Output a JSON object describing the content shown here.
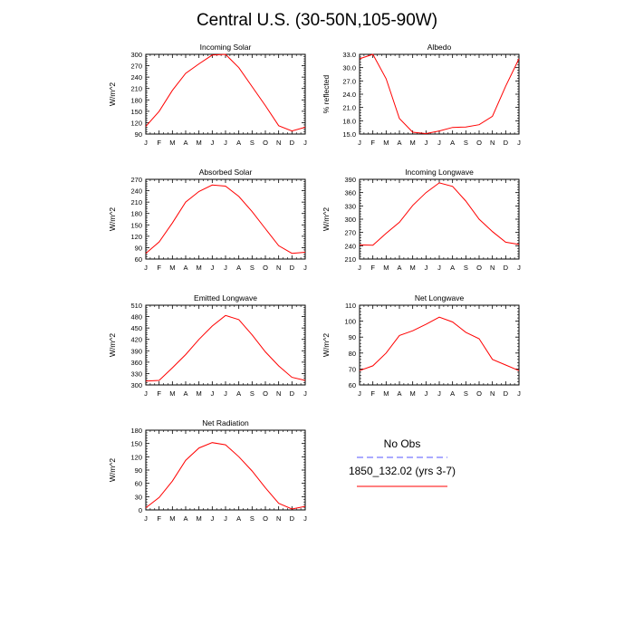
{
  "page": {
    "title": "Central U.S. (30-50N,105-90W)"
  },
  "legend": {
    "entries": [
      {
        "label": "No Obs",
        "color": "#5555ff",
        "style": "dashed"
      },
      {
        "label": "1850_132.02 (yrs 3-7)",
        "color": "#ff0000",
        "style": "solid"
      }
    ]
  },
  "colors": {
    "series": "#ff0000",
    "axis": "#000000"
  },
  "chart_data": [
    {
      "type": "line",
      "title": "Incoming Solar",
      "ylabel": "W/m^2",
      "xlabel": "",
      "x": [
        "J",
        "F",
        "M",
        "A",
        "M",
        "J",
        "J",
        "A",
        "S",
        "O",
        "N",
        "D",
        "J"
      ],
      "ylim": [
        90,
        300
      ],
      "yticks": [
        90,
        120,
        150,
        180,
        210,
        240,
        270,
        300
      ],
      "ytick_labels": [
        "90",
        "120",
        "150",
        "180",
        "210",
        "240",
        "270",
        "300"
      ],
      "series": [
        {
          "values": [
            110,
            150,
            205,
            250,
            275,
            298,
            300,
            265,
            215,
            165,
            112,
            98,
            108
          ]
        }
      ]
    },
    {
      "type": "line",
      "title": "Albedo",
      "ylabel": "% reflected",
      "xlabel": "",
      "x": [
        "J",
        "F",
        "M",
        "A",
        "M",
        "J",
        "J",
        "A",
        "S",
        "O",
        "N",
        "D",
        "J"
      ],
      "ylim": [
        15.0,
        33.0
      ],
      "yticks": [
        15,
        18,
        21,
        24,
        27,
        30,
        33
      ],
      "ytick_labels": [
        "15.0",
        "18.0",
        "21.0",
        "24.0",
        "27.0",
        "30.0",
        "33.0"
      ],
      "series": [
        {
          "values": [
            32.0,
            33.0,
            27.5,
            18.5,
            15.4,
            15.1,
            15.7,
            16.5,
            16.6,
            17.1,
            19.0,
            25.8,
            32.0
          ]
        }
      ]
    },
    {
      "type": "line",
      "title": "Absorbed Solar",
      "ylabel": "W/m^2",
      "xlabel": "",
      "x": [
        "J",
        "F",
        "M",
        "A",
        "M",
        "J",
        "J",
        "A",
        "S",
        "O",
        "N",
        "D",
        "J"
      ],
      "ylim": [
        60,
        270
      ],
      "yticks": [
        60,
        90,
        120,
        150,
        180,
        210,
        240,
        270
      ],
      "ytick_labels": [
        "60",
        "90",
        "120",
        "150",
        "180",
        "210",
        "240",
        "270"
      ],
      "series": [
        {
          "values": [
            75,
            105,
            155,
            210,
            238,
            255,
            252,
            225,
            185,
            140,
            95,
            75,
            78
          ]
        }
      ]
    },
    {
      "type": "line",
      "title": "Incoming Longwave",
      "ylabel": "W/m^2",
      "xlabel": "",
      "x": [
        "J",
        "F",
        "M",
        "A",
        "M",
        "J",
        "J",
        "A",
        "S",
        "O",
        "N",
        "D",
        "J"
      ],
      "ylim": [
        210,
        390
      ],
      "yticks": [
        210,
        240,
        270,
        300,
        330,
        360,
        390
      ],
      "ytick_labels": [
        "210",
        "240",
        "270",
        "300",
        "330",
        "360",
        "390"
      ],
      "series": [
        {
          "values": [
            242,
            241,
            268,
            293,
            331,
            360,
            382,
            374,
            341,
            300,
            272,
            248,
            243
          ]
        }
      ]
    },
    {
      "type": "line",
      "title": "Emitted Longwave",
      "ylabel": "W/m^2",
      "xlabel": "",
      "x": [
        "J",
        "F",
        "M",
        "A",
        "M",
        "J",
        "J",
        "A",
        "S",
        "O",
        "N",
        "D",
        "J"
      ],
      "ylim": [
        300,
        510
      ],
      "yticks": [
        300,
        330,
        360,
        390,
        420,
        450,
        480,
        510
      ],
      "ytick_labels": [
        "300",
        "330",
        "360",
        "390",
        "420",
        "450",
        "480",
        "510"
      ],
      "series": [
        {
          "values": [
            310,
            312,
            345,
            380,
            420,
            455,
            483,
            472,
            432,
            387,
            350,
            320,
            312
          ]
        }
      ]
    },
    {
      "type": "line",
      "title": "Net Longwave",
      "ylabel": "W/m^2",
      "xlabel": "",
      "x": [
        "J",
        "F",
        "M",
        "A",
        "M",
        "J",
        "J",
        "A",
        "S",
        "O",
        "N",
        "D",
        "J"
      ],
      "ylim": [
        60,
        110
      ],
      "yticks": [
        60,
        70,
        80,
        90,
        100,
        110
      ],
      "ytick_labels": [
        "60",
        "70",
        "80",
        "90",
        "100",
        "110"
      ],
      "series": [
        {
          "values": [
            69,
            72,
            80,
            91,
            94,
            98,
            102.5,
            99.5,
            93,
            89,
            76,
            72.5,
            69
          ]
        }
      ]
    },
    {
      "type": "line",
      "title": "Net Radiation",
      "ylabel": "W/m^2",
      "xlabel": "",
      "x": [
        "J",
        "F",
        "M",
        "A",
        "M",
        "J",
        "J",
        "A",
        "S",
        "O",
        "N",
        "D",
        "J"
      ],
      "ylim": [
        0,
        180
      ],
      "yticks": [
        0,
        30,
        60,
        90,
        120,
        150,
        180
      ],
      "ytick_labels": [
        "0",
        "30",
        "60",
        "90",
        "120",
        "150",
        "180"
      ],
      "series": [
        {
          "values": [
            5,
            28,
            65,
            112,
            140,
            152,
            147,
            120,
            88,
            50,
            15,
            2,
            8
          ]
        }
      ]
    }
  ]
}
